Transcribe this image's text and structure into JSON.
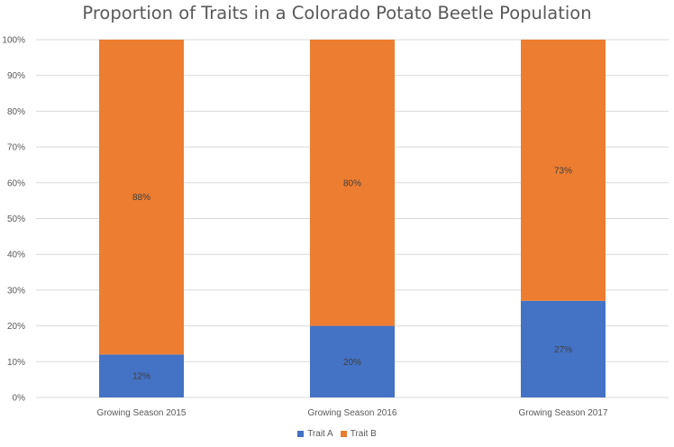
{
  "chart_data": {
    "type": "bar",
    "stacked": true,
    "title": "Proportion of Traits in a Colorado Potato Beetle Population",
    "categories": [
      "Growing Season 2015",
      "Growing Season 2016",
      "Growing Season 2017"
    ],
    "series": [
      {
        "name": "Trait A",
        "color": "#4472c4",
        "values": [
          12,
          20,
          27
        ],
        "labels": [
          "12%",
          "20%",
          "27%"
        ]
      },
      {
        "name": "Trait B",
        "color": "#ed7d31",
        "values": [
          88,
          80,
          73
        ],
        "labels": [
          "88%",
          "80%",
          "73%"
        ]
      }
    ],
    "ylim": [
      0,
      100
    ],
    "yticks": [
      "0%",
      "10%",
      "20%",
      "30%",
      "40%",
      "50%",
      "60%",
      "70%",
      "80%",
      "90%",
      "100%"
    ],
    "xlabel": "",
    "ylabel": "",
    "grid": true,
    "legend_position": "bottom"
  }
}
